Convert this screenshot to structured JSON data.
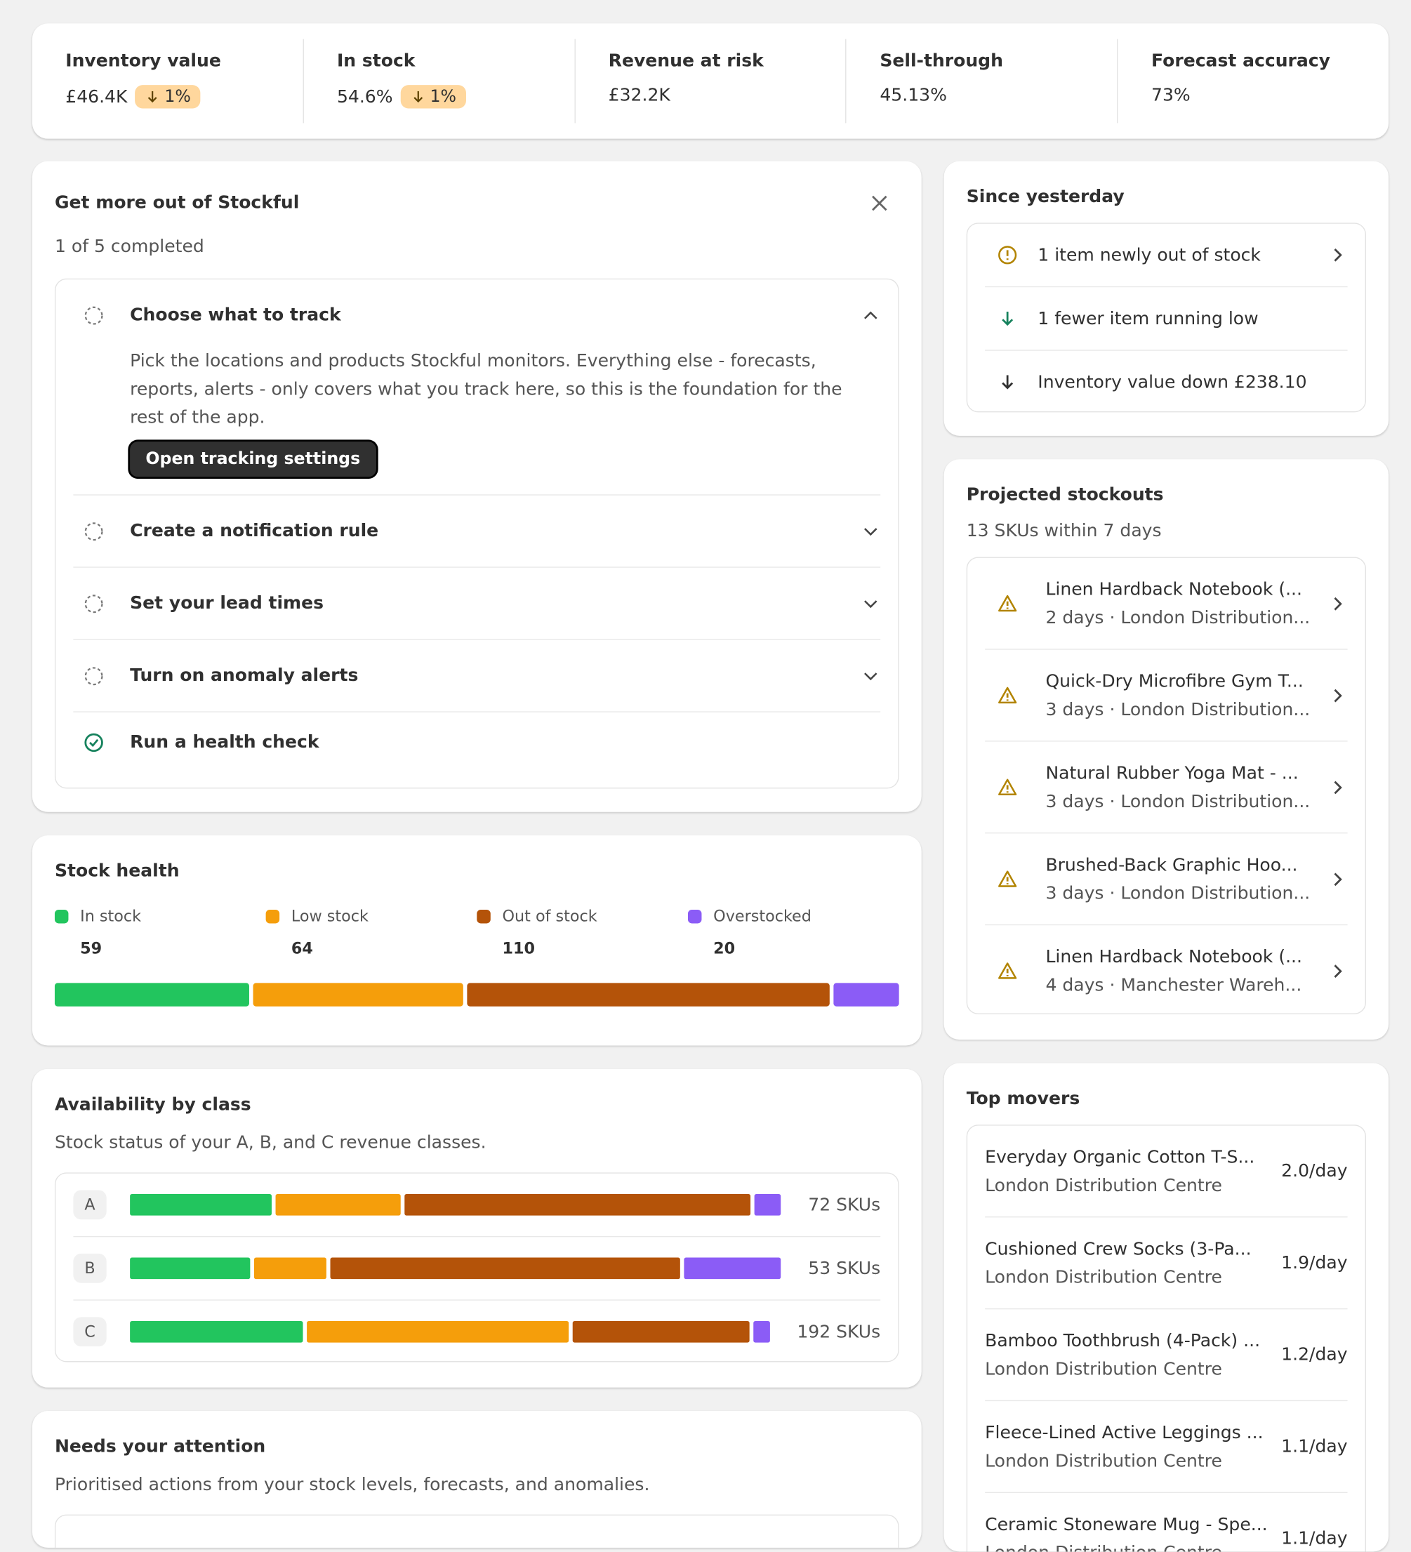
{
  "metrics": [
    {
      "label": "Inventory value",
      "value": "£46.4K",
      "change": "1%"
    },
    {
      "label": "In stock",
      "value": "54.6%",
      "change": "1%"
    },
    {
      "label": "Revenue at risk",
      "value": "£32.2K"
    },
    {
      "label": "Sell-through",
      "value": "45.13%"
    },
    {
      "label": "Forecast accuracy",
      "value": "73%"
    }
  ],
  "onboarding": {
    "title": "Get more out of Stockful",
    "progress": "1 of 5 completed",
    "steps": [
      {
        "title": "Choose what to track",
        "description": "Pick the locations and products Stockful monitors. Everything else - forecasts, reports, alerts - only covers what you track here, so this is the foundation for the rest of the app.",
        "button": "Open tracking settings"
      },
      {
        "title": "Create a notification rule"
      },
      {
        "title": "Set your lead times"
      },
      {
        "title": "Turn on anomaly alerts"
      },
      {
        "title": "Run a health check"
      }
    ]
  },
  "stock_health": {
    "title": "Stock health",
    "categories": [
      "In stock",
      "Low stock",
      "Out of stock",
      "Overstocked"
    ],
    "colors": [
      "#22c55e",
      "#f59e0b",
      "#b45309",
      "#8b5cf6"
    ],
    "values": [
      59,
      64,
      110,
      20
    ]
  },
  "availability": {
    "title": "Availability by class",
    "subtitle": "Stock status of your A, B, and C revenue classes.",
    "classes": [
      {
        "name": "A",
        "values": [
          16,
          14,
          39,
          3
        ],
        "label": "72 SKUs"
      },
      {
        "name": "B",
        "values": [
          10,
          6,
          29,
          8
        ],
        "label": "53 SKUs"
      },
      {
        "name": "C",
        "values": [
          53,
          80,
          54,
          5
        ],
        "label": "192 SKUs"
      }
    ]
  },
  "attention": {
    "title": "Needs your attention",
    "subtitle": "Prioritised actions from your stock levels, forecasts, and anomalies."
  },
  "since_yesterday": {
    "title": "Since yesterday",
    "items": [
      "1 item newly out of stock",
      "1 fewer item running low",
      "Inventory value down £238.10"
    ]
  },
  "stockouts": {
    "title": "Projected stockouts",
    "subtitle": "13 SKUs within 7 days",
    "items": [
      {
        "name": "Linen Hardback Notebook (...",
        "detail": "2 days · London Distribution..."
      },
      {
        "name": "Quick-Dry Microfibre Gym T...",
        "detail": "3 days · London Distribution..."
      },
      {
        "name": "Natural Rubber Yoga Mat - ...",
        "detail": "3 days · London Distribution..."
      },
      {
        "name": "Brushed-Back Graphic Hoo...",
        "detail": "3 days · London Distribution..."
      },
      {
        "name": "Linen Hardback Notebook (...",
        "detail": "4 days · Manchester Wareh..."
      }
    ]
  },
  "top_movers": {
    "title": "Top movers",
    "items": [
      {
        "name": "Everyday Organic Cotton T-S...",
        "location": "London Distribution Centre",
        "rate": "2.0/day"
      },
      {
        "name": "Cushioned Crew Socks (3-Pa...",
        "location": "London Distribution Centre",
        "rate": "1.9/day"
      },
      {
        "name": "Bamboo Toothbrush (4-Pack) ...",
        "location": "London Distribution Centre",
        "rate": "1.2/day"
      },
      {
        "name": "Fleece-Lined Active Leggings ...",
        "location": "London Distribution Centre",
        "rate": "1.1/day"
      },
      {
        "name": "Ceramic Stoneware Mug - Spe...",
        "location": "London Distribution Centre",
        "rate": "1.1/day"
      }
    ]
  }
}
